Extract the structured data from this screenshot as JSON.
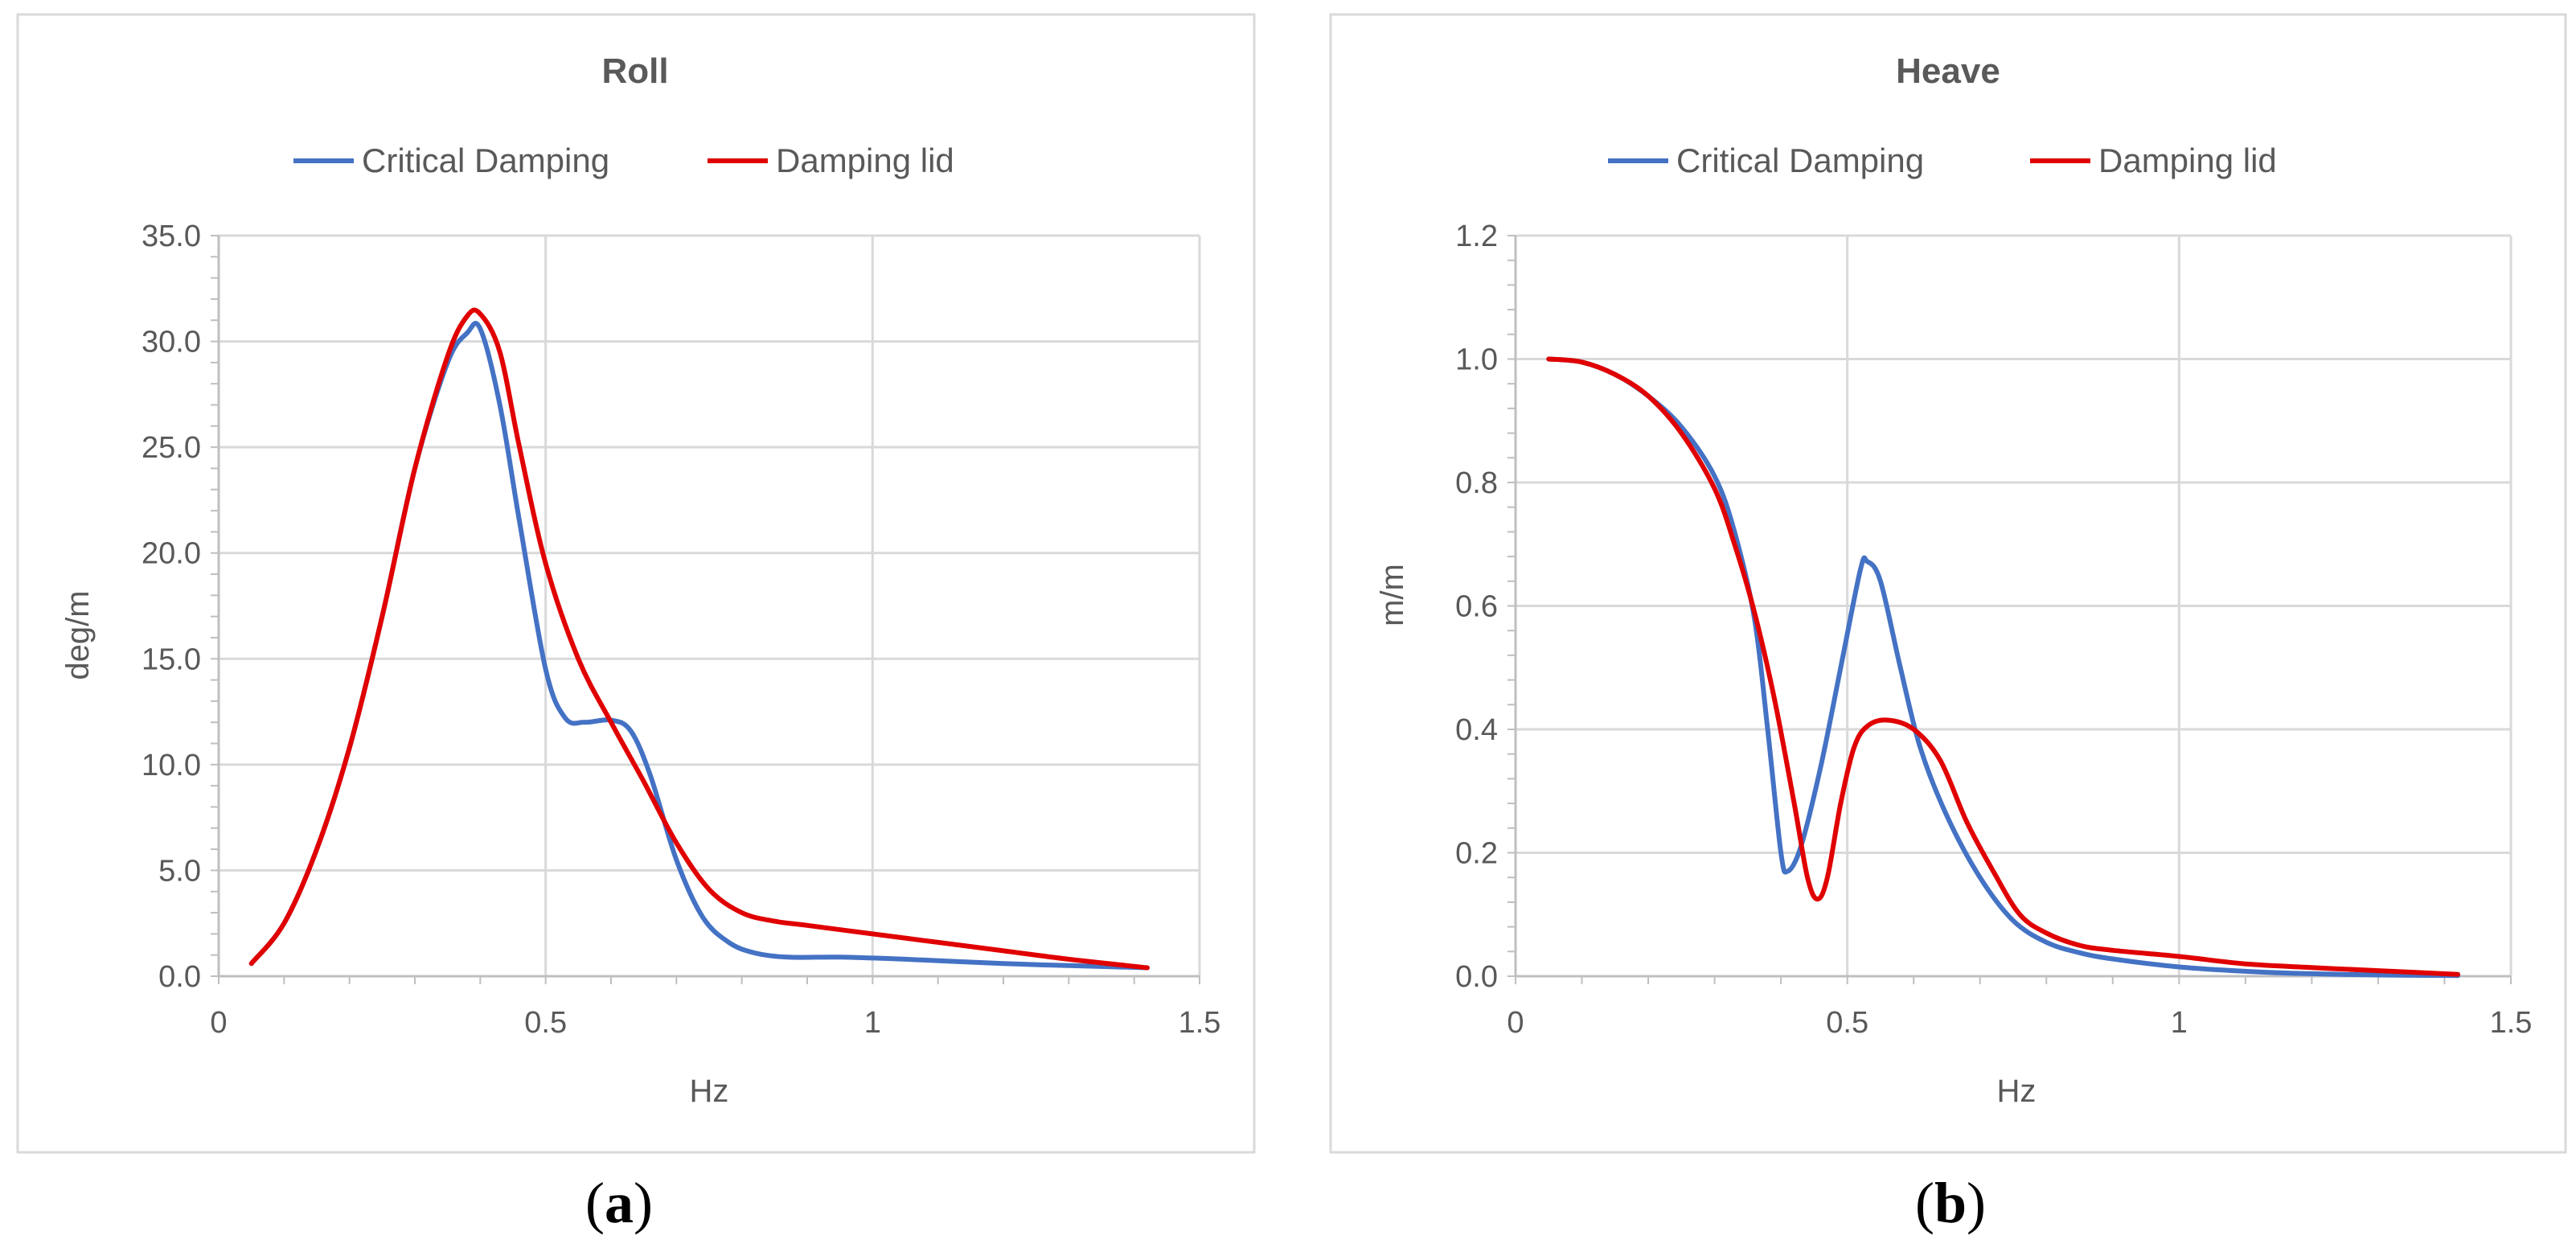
{
  "chart_data": [
    {
      "type": "line",
      "title": "Roll",
      "xlabel": "Hz",
      "ylabel": "deg/m",
      "xlim": [
        0,
        1.5
      ],
      "ylim": [
        0,
        35
      ],
      "xticks": [
        "0",
        "0.5",
        "1",
        "1.5"
      ],
      "yticks": [
        "0.0",
        "5.0",
        "10.0",
        "15.0",
        "20.0",
        "25.0",
        "30.0",
        "35.0"
      ],
      "legend_position": "top-center",
      "caption": {
        "open": "(",
        "letter": "a",
        "close": ")"
      },
      "series": [
        {
          "name": "Critical Damping",
          "color": "#4472C4",
          "points": [
            [
              0.05,
              0.6
            ],
            [
              0.1,
              2.5
            ],
            [
              0.15,
              6.0
            ],
            [
              0.2,
              10.8
            ],
            [
              0.25,
              17.0
            ],
            [
              0.3,
              24.0
            ],
            [
              0.35,
              29.0
            ],
            [
              0.38,
              30.4
            ],
            [
              0.4,
              30.6
            ],
            [
              0.43,
              27.0
            ],
            [
              0.46,
              21.5
            ],
            [
              0.5,
              14.5
            ],
            [
              0.53,
              12.2
            ],
            [
              0.56,
              12.0
            ],
            [
              0.6,
              12.1
            ],
            [
              0.63,
              11.6
            ],
            [
              0.66,
              9.5
            ],
            [
              0.7,
              5.5
            ],
            [
              0.74,
              2.8
            ],
            [
              0.78,
              1.6
            ],
            [
              0.82,
              1.1
            ],
            [
              0.87,
              0.9
            ],
            [
              0.95,
              0.9
            ],
            [
              1.05,
              0.8
            ],
            [
              1.2,
              0.6
            ],
            [
              1.3,
              0.5
            ],
            [
              1.42,
              0.4
            ]
          ]
        },
        {
          "name": "Damping lid",
          "color": "#E00000",
          "points": [
            [
              0.05,
              0.6
            ],
            [
              0.1,
              2.5
            ],
            [
              0.15,
              6.0
            ],
            [
              0.2,
              10.8
            ],
            [
              0.25,
              17.0
            ],
            [
              0.3,
              24.0
            ],
            [
              0.35,
              29.3
            ],
            [
              0.38,
              31.2
            ],
            [
              0.4,
              31.3
            ],
            [
              0.43,
              29.5
            ],
            [
              0.46,
              25.0
            ],
            [
              0.5,
              19.5
            ],
            [
              0.55,
              15.0
            ],
            [
              0.6,
              12.0
            ],
            [
              0.65,
              9.2
            ],
            [
              0.7,
              6.3
            ],
            [
              0.75,
              4.1
            ],
            [
              0.8,
              3.0
            ],
            [
              0.85,
              2.6
            ],
            [
              0.9,
              2.4
            ],
            [
              1.0,
              2.0
            ],
            [
              1.1,
              1.6
            ],
            [
              1.2,
              1.2
            ],
            [
              1.3,
              0.8
            ],
            [
              1.42,
              0.4
            ]
          ]
        }
      ]
    },
    {
      "type": "line",
      "title": "Heave",
      "xlabel": "Hz",
      "ylabel": "m/m",
      "xlim": [
        0,
        1.5
      ],
      "ylim": [
        0,
        1.2
      ],
      "xticks": [
        "0",
        "0.5",
        "1",
        "1.5"
      ],
      "yticks": [
        "0.0",
        "0.2",
        "0.4",
        "0.6",
        "0.8",
        "1.0",
        "1.2"
      ],
      "legend_position": "top-center",
      "caption": {
        "open": "(",
        "letter": "b",
        "close": ")"
      },
      "series": [
        {
          "name": "Critical Damping",
          "color": "#4472C4",
          "points": [
            [
              0.05,
              1.0
            ],
            [
              0.1,
              0.995
            ],
            [
              0.15,
              0.975
            ],
            [
              0.2,
              0.94
            ],
            [
              0.25,
              0.89
            ],
            [
              0.3,
              0.81
            ],
            [
              0.33,
              0.72
            ],
            [
              0.36,
              0.58
            ],
            [
              0.38,
              0.4
            ],
            [
              0.4,
              0.2
            ],
            [
              0.41,
              0.17
            ],
            [
              0.43,
              0.21
            ],
            [
              0.46,
              0.34
            ],
            [
              0.49,
              0.5
            ],
            [
              0.52,
              0.66
            ],
            [
              0.53,
              0.672
            ],
            [
              0.55,
              0.64
            ],
            [
              0.58,
              0.5
            ],
            [
              0.61,
              0.37
            ],
            [
              0.65,
              0.26
            ],
            [
              0.7,
              0.16
            ],
            [
              0.75,
              0.09
            ],
            [
              0.8,
              0.055
            ],
            [
              0.85,
              0.038
            ],
            [
              0.9,
              0.028
            ],
            [
              1.0,
              0.015
            ],
            [
              1.1,
              0.008
            ],
            [
              1.2,
              0.004
            ],
            [
              1.3,
              0.002
            ],
            [
              1.42,
              0.001
            ]
          ]
        },
        {
          "name": "Damping lid",
          "color": "#E00000",
          "points": [
            [
              0.05,
              1.0
            ],
            [
              0.1,
              0.995
            ],
            [
              0.15,
              0.975
            ],
            [
              0.2,
              0.94
            ],
            [
              0.25,
              0.88
            ],
            [
              0.3,
              0.79
            ],
            [
              0.33,
              0.7
            ],
            [
              0.36,
              0.59
            ],
            [
              0.39,
              0.45
            ],
            [
              0.42,
              0.28
            ],
            [
              0.44,
              0.16
            ],
            [
              0.455,
              0.125
            ],
            [
              0.47,
              0.16
            ],
            [
              0.49,
              0.28
            ],
            [
              0.51,
              0.37
            ],
            [
              0.53,
              0.405
            ],
            [
              0.56,
              0.415
            ],
            [
              0.6,
              0.4
            ],
            [
              0.64,
              0.35
            ],
            [
              0.68,
              0.25
            ],
            [
              0.72,
              0.17
            ],
            [
              0.76,
              0.1
            ],
            [
              0.8,
              0.07
            ],
            [
              0.85,
              0.05
            ],
            [
              0.9,
              0.042
            ],
            [
              1.0,
              0.032
            ],
            [
              1.1,
              0.02
            ],
            [
              1.2,
              0.014
            ],
            [
              1.3,
              0.009
            ],
            [
              1.42,
              0.003
            ]
          ]
        }
      ]
    }
  ]
}
